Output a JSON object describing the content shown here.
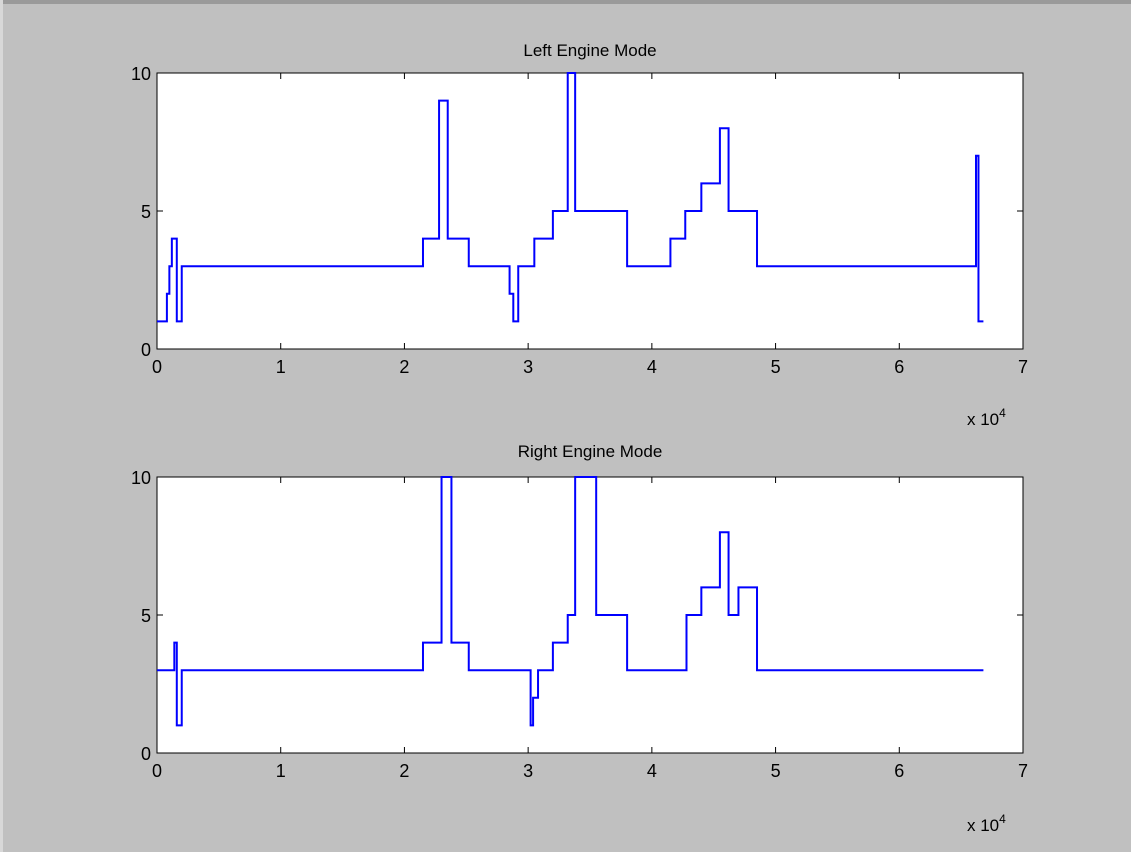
{
  "chart_data": [
    {
      "type": "line",
      "title": "Left Engine Mode",
      "xlabel": "",
      "ylabel": "",
      "x_multiplier_label": "x 10",
      "x_multiplier_exp": "4",
      "xlim": [
        0,
        7
      ],
      "ylim": [
        0,
        10
      ],
      "xticks": [
        "0",
        "1",
        "2",
        "3",
        "4",
        "5",
        "6",
        "7"
      ],
      "yticks": [
        "0",
        "5",
        "10"
      ],
      "grid": false,
      "series_color": "#0000ff",
      "series": [
        {
          "step": true,
          "x": [
            0,
            0.08,
            0.1,
            0.12,
            0.16,
            0.2,
            2.15,
            2.28,
            2.35,
            2.52,
            2.85,
            2.88,
            2.92,
            3.05,
            3.2,
            3.32,
            3.38,
            3.55,
            3.8,
            4.15,
            4.27,
            4.4,
            4.55,
            4.62,
            4.68,
            4.85,
            5.0,
            6.62,
            6.64,
            6.68
          ],
          "values": [
            1,
            2,
            3,
            4,
            1,
            3,
            4,
            9,
            4,
            3,
            2,
            1,
            3,
            4,
            5,
            10,
            5,
            5,
            3,
            4,
            5,
            6,
            8,
            5,
            5,
            3,
            3,
            7,
            1,
            1
          ]
        }
      ]
    },
    {
      "type": "line",
      "title": "Right Engine Mode",
      "xlabel": "",
      "ylabel": "",
      "x_multiplier_label": "x 10",
      "x_multiplier_exp": "4",
      "xlim": [
        0,
        7
      ],
      "ylim": [
        0,
        10
      ],
      "xticks": [
        "0",
        "1",
        "2",
        "3",
        "4",
        "5",
        "6",
        "7"
      ],
      "yticks": [
        "0",
        "5",
        "10"
      ],
      "grid": false,
      "series_color": "#0000ff",
      "series": [
        {
          "step": true,
          "x": [
            0,
            0.14,
            0.16,
            0.2,
            2.15,
            2.3,
            2.38,
            2.52,
            2.9,
            3.02,
            3.04,
            3.08,
            3.2,
            3.32,
            3.38,
            3.55,
            3.8,
            4.15,
            4.28,
            4.4,
            4.55,
            4.62,
            4.7,
            4.85,
            5.0,
            6.68
          ],
          "values": [
            3,
            4,
            1,
            3,
            4,
            10,
            4,
            3,
            3,
            1,
            2,
            3,
            4,
            5,
            10,
            5,
            3,
            3,
            5,
            6,
            8,
            5,
            6,
            3,
            3,
            3
          ]
        }
      ]
    }
  ]
}
